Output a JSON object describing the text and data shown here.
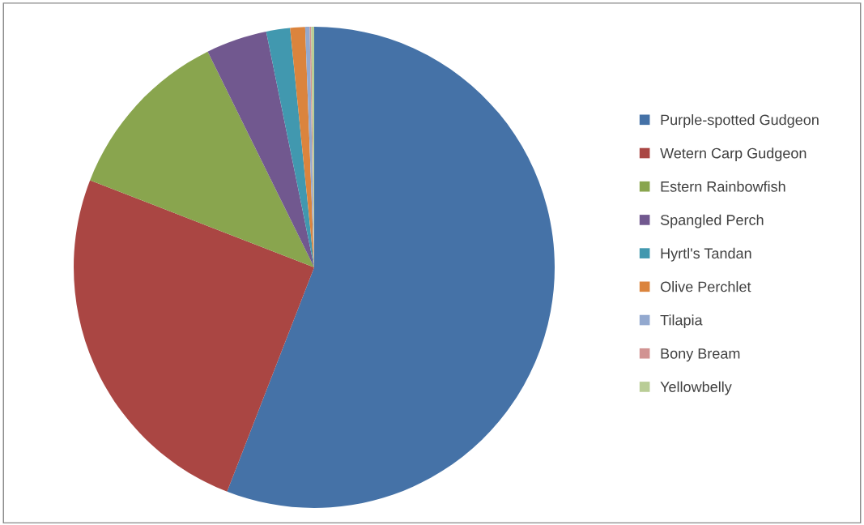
{
  "chart_data": {
    "type": "pie",
    "categories": [
      "Purple-spotted Gudgeon",
      "Wetern Carp Gudgeon",
      "Estern Rainbowfish",
      "Spangled Perch",
      "Hyrtl's Tandan",
      "Olive Perchlet",
      "Tilapia",
      "Bony Bream",
      "Yellowbelly"
    ],
    "values": [
      55.9,
      25.0,
      11.8,
      4.1,
      1.6,
      1.0,
      0.3,
      0.1,
      0.2
    ],
    "colors": [
      "#4572a7",
      "#aa4643",
      "#89a54e",
      "#71588f",
      "#4198af",
      "#db843d",
      "#93a9cf",
      "#d19392",
      "#b9cd96"
    ],
    "legend": "right"
  }
}
